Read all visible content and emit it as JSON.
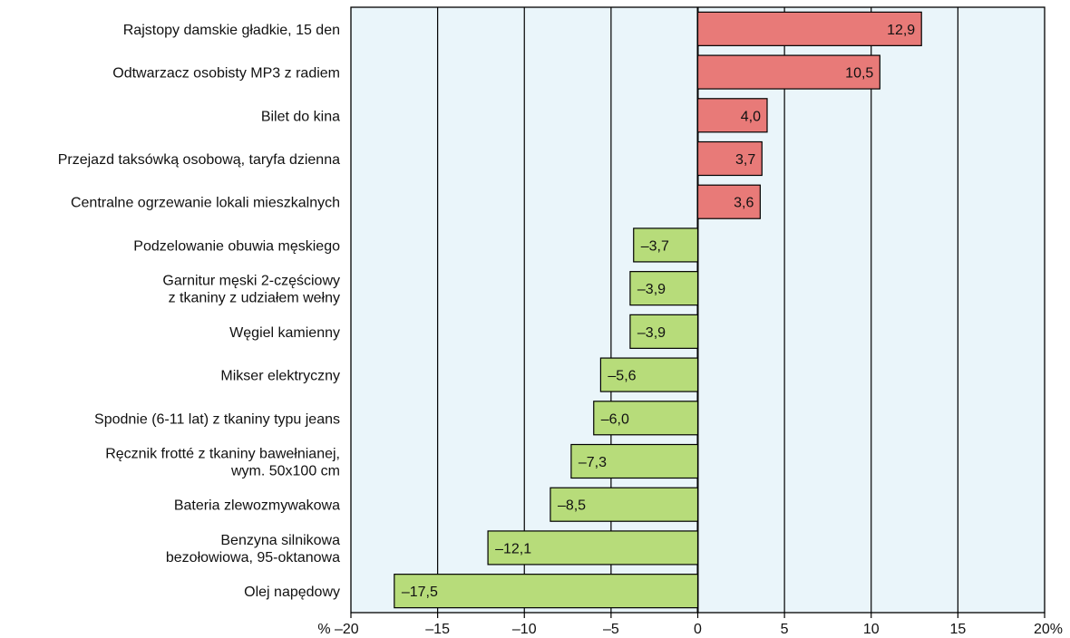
{
  "chart_data": {
    "type": "bar",
    "orientation": "horizontal",
    "title": "",
    "xlabel": "",
    "ylabel": "",
    "xlim": [
      -20,
      20
    ],
    "x_ticks": [
      -20,
      -15,
      -10,
      -5,
      0,
      5,
      10,
      15,
      20
    ],
    "tick_labels": [
      "% –20",
      "–15",
      "–10",
      "–5",
      "0",
      "5",
      "10",
      "15",
      "20%"
    ],
    "grid": true,
    "categories": [
      [
        "Rajstopy damskie gładkie, 15 den"
      ],
      [
        "Odtwarzacz osobisty MP3 z radiem"
      ],
      [
        "Bilet do kina"
      ],
      [
        "Przejazd taksówką osobową, taryfa dzienna"
      ],
      [
        "Centralne ogrzewanie lokali mieszkalnych"
      ],
      [
        "Podzelowanie obuwia męskiego"
      ],
      [
        "Garnitur męski 2-częściowy",
        "z tkaniny z udziałem wełny"
      ],
      [
        "Węgiel kamienny"
      ],
      [
        "Mikser elektryczny"
      ],
      [
        "Spodnie (6-11 lat) z tkaniny typu jeans"
      ],
      [
        "Ręcznik frotté z tkaniny bawełnianej,",
        "wym. 50x100 cm"
      ],
      [
        "Bateria zlewozmywakowa"
      ],
      [
        "Benzyna silnikowa",
        "bezołowiowa, 95-oktanowa"
      ],
      [
        "Olej napędowy"
      ]
    ],
    "values": [
      12.9,
      10.5,
      4.0,
      3.7,
      3.6,
      -3.7,
      -3.9,
      -3.9,
      -5.6,
      -6.0,
      -7.3,
      -8.5,
      -12.1,
      -17.5
    ],
    "value_labels": [
      "12,9",
      "10,5",
      "4,0",
      "3,7",
      "3,6",
      "–3,7",
      "–3,9",
      "–3,9",
      "–5,6",
      "–6,0",
      "–7,3",
      "–8,5",
      "–12,1",
      "–17,5"
    ],
    "colors": {
      "positive": "#e87a78",
      "negative": "#b7dc7a",
      "plot_background": "#eaf5fa",
      "grid": "#000000"
    }
  }
}
